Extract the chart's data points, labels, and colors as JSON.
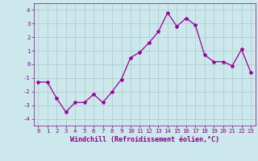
{
  "x": [
    0,
    1,
    2,
    3,
    4,
    5,
    6,
    7,
    8,
    9,
    10,
    11,
    12,
    13,
    14,
    15,
    16,
    17,
    18,
    19,
    20,
    21,
    22,
    23
  ],
  "y": [
    -1.3,
    -1.3,
    -2.5,
    -3.5,
    -2.8,
    -2.8,
    -2.2,
    -2.8,
    -2.0,
    -1.1,
    0.5,
    0.9,
    1.6,
    2.4,
    3.8,
    2.8,
    3.4,
    2.9,
    0.7,
    0.2,
    0.2,
    -0.1,
    1.1,
    -0.6
  ],
  "line_color": "#990099",
  "marker": "*",
  "marker_size": 3,
  "bg_color": "#cce8ec",
  "grid_color": "#aac8cc",
  "xlabel": "Windchill (Refroidissement éolien,°C)",
  "xlim": [
    -0.5,
    23.5
  ],
  "ylim": [
    -4.5,
    4.5
  ],
  "yticks": [
    -4,
    -3,
    -2,
    -1,
    0,
    1,
    2,
    3,
    4
  ],
  "xticks": [
    0,
    1,
    2,
    3,
    4,
    5,
    6,
    7,
    8,
    9,
    10,
    11,
    12,
    13,
    14,
    15,
    16,
    17,
    18,
    19,
    20,
    21,
    22,
    23
  ],
  "tick_color": "#880088",
  "tick_fontsize": 5.2,
  "xlabel_fontsize": 6.0,
  "linewidth": 0.9
}
